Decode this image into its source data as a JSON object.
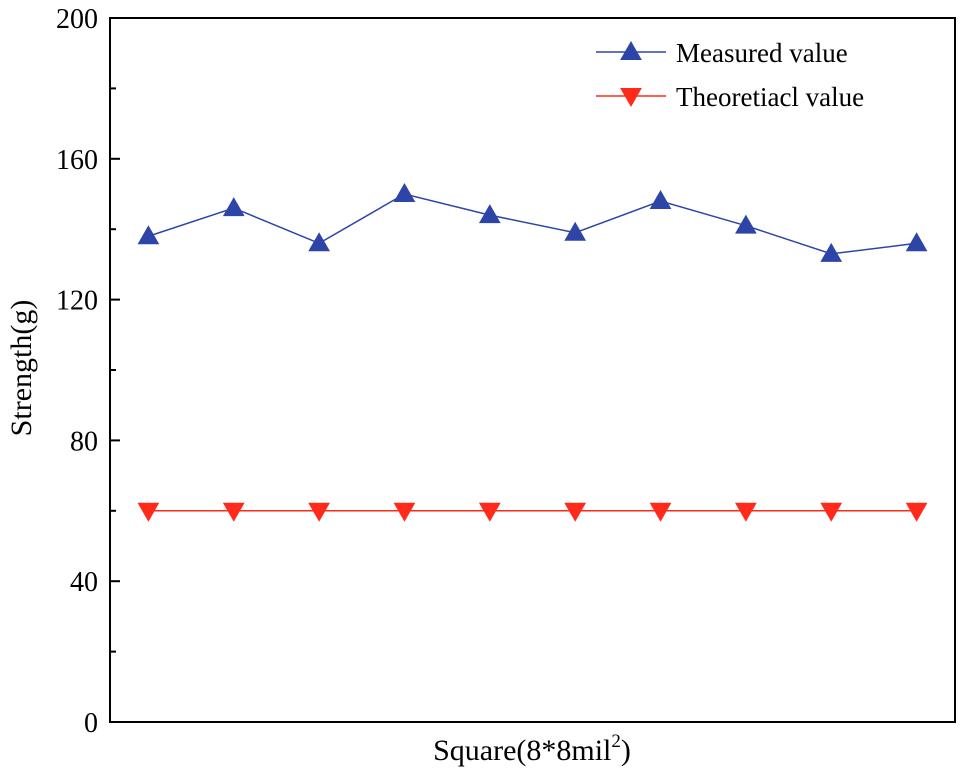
{
  "chart_data": {
    "type": "line",
    "title": "",
    "xlabel": "Square(8*8mil",
    "xlabel_superscript": "2",
    "xlabel_close": ")",
    "ylabel": "Strength(g)",
    "ylim": [
      0,
      200
    ],
    "yticks": [
      0,
      40,
      80,
      120,
      160,
      200
    ],
    "x": [
      1,
      2,
      3,
      4,
      5,
      6,
      7,
      8,
      9,
      10
    ],
    "grid": false,
    "legend_position": "top-right",
    "series": [
      {
        "name": "Measured value",
        "color": "#2e45a8",
        "marker": "triangle-up",
        "values": [
          138,
          146,
          136,
          150,
          144,
          139,
          148,
          141,
          133,
          136
        ]
      },
      {
        "name": "Theoretiacl value",
        "color": "#ff2a1a",
        "marker": "triangle-down",
        "values": [
          60,
          60,
          60,
          60,
          60,
          60,
          60,
          60,
          60,
          60
        ]
      }
    ]
  }
}
